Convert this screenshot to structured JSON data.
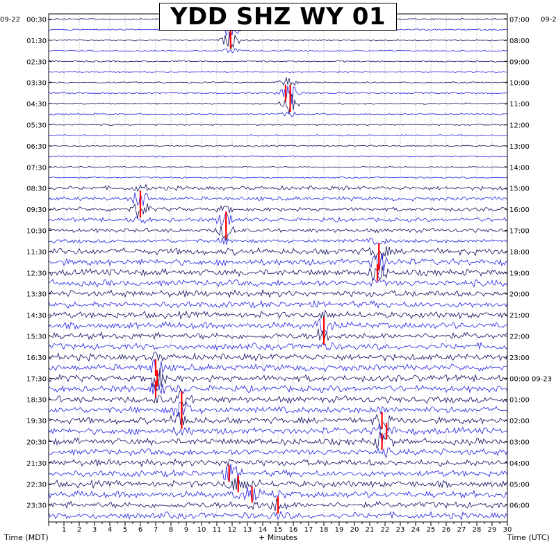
{
  "chart_data": {
    "type": "line",
    "title": "YDD SHZ WY 01",
    "left_date": "09-22",
    "right_date_top": "09-2",
    "right_date_change": "09-23",
    "xlabel": "+ Minutes",
    "left_axis_label": "Time (MDT)",
    "right_axis_label": "Time (UTC)",
    "xlim": [
      0,
      30
    ],
    "x_ticks": [
      "1",
      "2",
      "3",
      "4",
      "5",
      "6",
      "7",
      "8",
      "9",
      "10",
      "11",
      "12",
      "13",
      "14",
      "15",
      "16",
      "17",
      "18",
      "19",
      "20",
      "21",
      "22",
      "23",
      "24",
      "25",
      "26",
      "27",
      "28",
      "29",
      "30"
    ],
    "rows_per_label": 2,
    "row_count": 48,
    "left_labels": [
      "00:30",
      "01:30",
      "02:30",
      "03:30",
      "04:30",
      "05:30",
      "06:30",
      "07:30",
      "08:30",
      "09:30",
      "10:30",
      "11:30",
      "12:30",
      "13:30",
      "14:30",
      "15:30",
      "16:30",
      "17:30",
      "18:30",
      "19:30",
      "20:30",
      "21:30",
      "22:30",
      "23:30"
    ],
    "right_labels": [
      "07:00",
      "08:00",
      "09:00",
      "10:00",
      "11:00",
      "12:00",
      "13:00",
      "14:00",
      "15:00",
      "16:00",
      "17:00",
      "18:00",
      "19:00",
      "20:00",
      "21:00",
      "22:00",
      "23:00",
      "00:00",
      "01:00",
      "02:00",
      "03:00",
      "04:00",
      "05:00",
      "06:00"
    ],
    "date_change_row_label": "00:00",
    "trace_colors": [
      "#0a0a5c",
      "#1f1fe0",
      "#0a0a5c",
      "#1f1fe0"
    ],
    "event_color": "#ff0000",
    "grid": true,
    "events": [
      {
        "row": 1,
        "minute": 11.9
      },
      {
        "row": 2,
        "minute": 11.9
      },
      {
        "row": 7,
        "minute": 15.5
      },
      {
        "row": 7,
        "minute": 15.8
      },
      {
        "row": 8,
        "minute": 15.8
      },
      {
        "row": 17,
        "minute": 6.0
      },
      {
        "row": 18,
        "minute": 6.0
      },
      {
        "row": 19,
        "minute": 11.6
      },
      {
        "row": 20,
        "minute": 11.6
      },
      {
        "row": 22,
        "minute": 21.6
      },
      {
        "row": 23,
        "minute": 21.6
      },
      {
        "row": 24,
        "minute": 21.5
      },
      {
        "row": 29,
        "minute": 18.0
      },
      {
        "row": 30,
        "minute": 18.0
      },
      {
        "row": 33,
        "minute": 7.0
      },
      {
        "row": 34,
        "minute": 7.1
      },
      {
        "row": 35,
        "minute": 7.0
      },
      {
        "row": 36,
        "minute": 8.7
      },
      {
        "row": 37,
        "minute": 8.7
      },
      {
        "row": 38,
        "minute": 8.7
      },
      {
        "row": 38,
        "minute": 21.8
      },
      {
        "row": 39,
        "minute": 22.1
      },
      {
        "row": 40,
        "minute": 21.8
      },
      {
        "row": 43,
        "minute": 11.8
      },
      {
        "row": 44,
        "minute": 12.4
      },
      {
        "row": 45,
        "minute": 13.3
      },
      {
        "row": 46,
        "minute": 15.0
      }
    ]
  }
}
